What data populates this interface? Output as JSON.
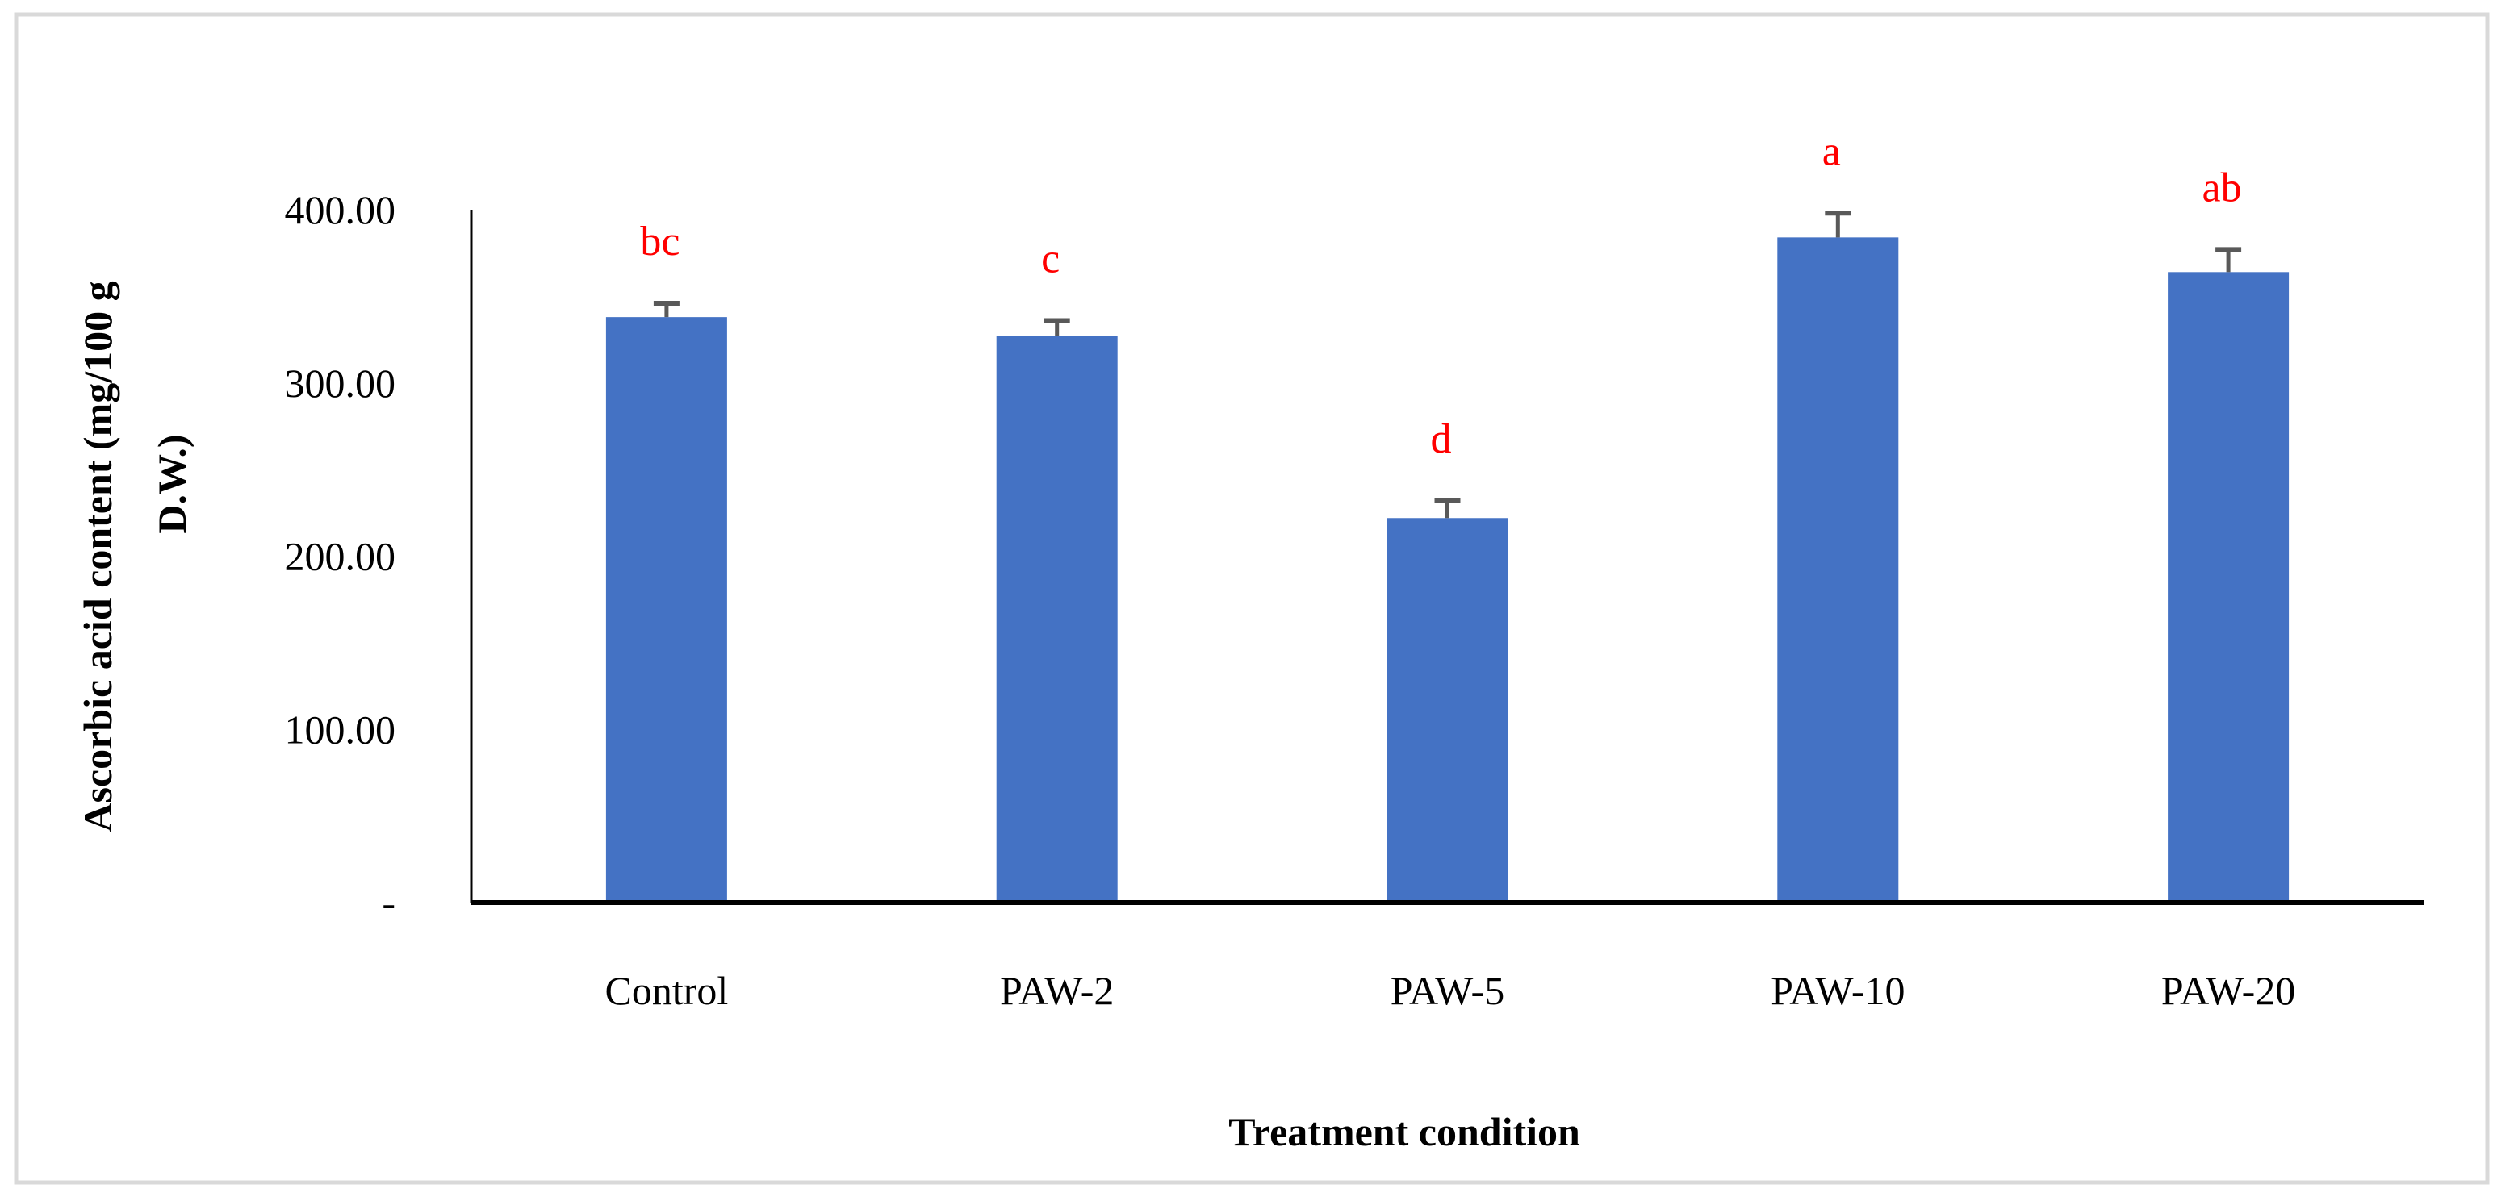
{
  "chart_data": {
    "type": "bar",
    "title": "",
    "xlabel": "Treatment condition",
    "ylabel_lines": [
      "Ascorbic acid content (mg/100 g",
      "D.W.)"
    ],
    "categories": [
      "Control",
      "PAW-2",
      "PAW-5",
      "PAW-10",
      "PAW-20"
    ],
    "values": [
      338,
      327,
      222,
      384,
      364
    ],
    "error_upper": [
      346,
      336,
      232,
      398,
      377
    ],
    "significance_letters": [
      "bc",
      "c",
      "d",
      "a",
      "ab"
    ],
    "ylim": [
      0,
      400
    ],
    "yticks": [
      0,
      100,
      200,
      300,
      400
    ],
    "ytick_labels": [
      "-",
      "100.00",
      "200.00",
      "300.00",
      "400.00"
    ],
    "grid": false,
    "legend": "none",
    "colors": {
      "bar": "#4472C4",
      "error_bar": "#595959",
      "letters": "#FF0000",
      "axis": "#000000",
      "frame": "#D9D9D9"
    }
  }
}
